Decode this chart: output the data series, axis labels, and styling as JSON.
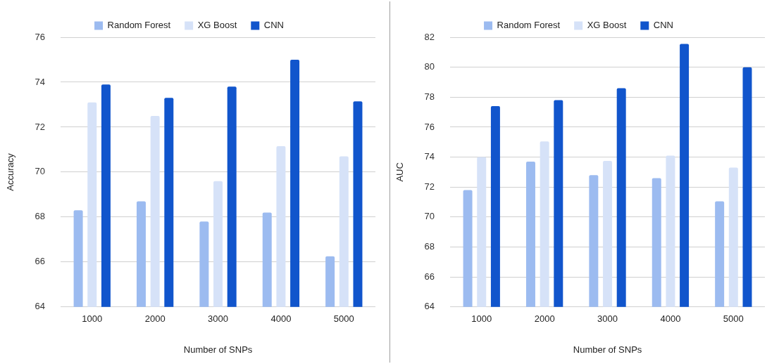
{
  "chart_data": [
    {
      "type": "bar",
      "xlabel": "Number of SNPs",
      "ylabel": "Accuracy",
      "categories": [
        "1000",
        "2000",
        "3000",
        "4000",
        "5000"
      ],
      "series": [
        {
          "name": "Random Forest",
          "color": "#9cbbf0",
          "values": [
            68.3,
            68.7,
            67.8,
            68.2,
            66.25
          ]
        },
        {
          "name": "XG Boost",
          "color": "#d6e2f8",
          "values": [
            73.1,
            72.5,
            69.6,
            71.15,
            70.7
          ]
        },
        {
          "name": "CNN",
          "color": "#1155cc",
          "values": [
            73.9,
            73.3,
            73.8,
            75.0,
            73.15
          ]
        }
      ],
      "ylim": [
        64,
        76
      ],
      "yticks": [
        64,
        66,
        68,
        70,
        72,
        74,
        76
      ],
      "grid": "y",
      "legend": "top"
    },
    {
      "type": "bar",
      "xlabel": "Number of SNPs",
      "ylabel": "AUC",
      "categories": [
        "1000",
        "2000",
        "3000",
        "4000",
        "5000"
      ],
      "series": [
        {
          "name": "Random Forest",
          "color": "#9cbbf0",
          "values": [
            71.8,
            73.7,
            72.8,
            72.6,
            71.05
          ]
        },
        {
          "name": "XG Boost",
          "color": "#d6e2f8",
          "values": [
            74.0,
            75.05,
            73.75,
            74.1,
            73.3
          ]
        },
        {
          "name": "CNN",
          "color": "#1155cc",
          "values": [
            77.4,
            77.8,
            78.6,
            81.55,
            80.0
          ]
        }
      ],
      "ylim": [
        64,
        82
      ],
      "yticks": [
        64,
        66,
        68,
        70,
        72,
        74,
        76,
        78,
        80,
        82
      ],
      "grid": "y",
      "legend": "top"
    }
  ]
}
